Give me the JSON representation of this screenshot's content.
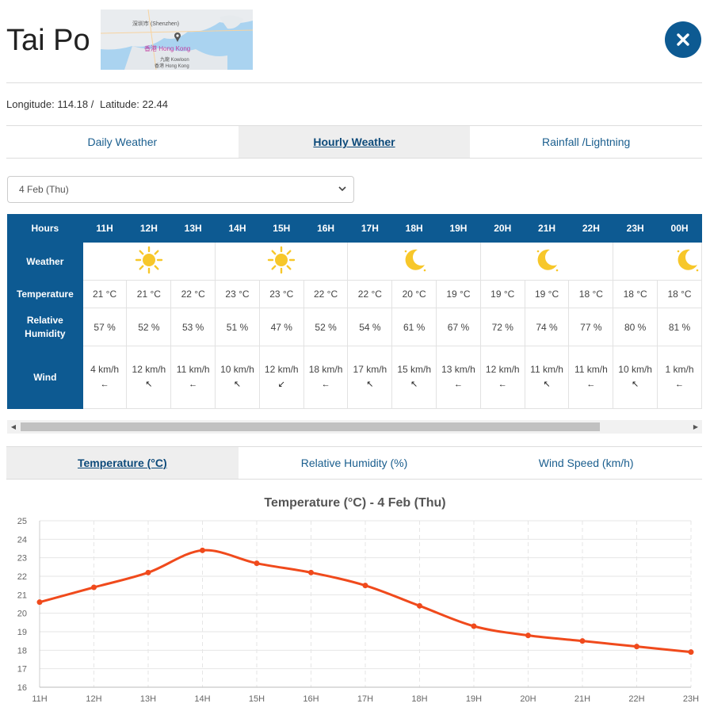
{
  "location": {
    "name": "Tai Po"
  },
  "map": {
    "label1": "深圳市 (Shenzhen)",
    "label2": "香港 Hong Kong",
    "label3": "九龍 Kowloon",
    "label4": "香港 Hong Kong"
  },
  "coords": {
    "longitude_label": "Longitude: 114.18 /",
    "latitude_label": "Latitude: 22.44"
  },
  "main_tabs": [
    {
      "label": "Daily Weather",
      "active": false
    },
    {
      "label": "Hourly Weather",
      "active": true
    },
    {
      "label": "Rainfall /Lightning",
      "active": false
    }
  ],
  "date_select": {
    "value": "4 Feb (Thu)"
  },
  "hourly": {
    "row_labels": {
      "hours": "Hours",
      "weather": "Weather",
      "temperature": "Temperature",
      "humidity": "Relative Humidity",
      "wind": "Wind"
    },
    "hours": [
      "11H",
      "12H",
      "13H",
      "14H",
      "15H",
      "16H",
      "17H",
      "18H",
      "19H",
      "20H",
      "21H",
      "22H",
      "23H",
      "00H"
    ],
    "weather_groups": [
      {
        "icon": "sun-icon",
        "span": 3
      },
      {
        "icon": "sun-icon",
        "span": 3
      },
      {
        "icon": "moon-icon",
        "span": 3
      },
      {
        "icon": "moon-icon",
        "span": 3
      },
      {
        "icon": "moon-icon",
        "span": 2
      }
    ],
    "temperature": [
      "21 °C",
      "21 °C",
      "22 °C",
      "23 °C",
      "23 °C",
      "22 °C",
      "22 °C",
      "20 °C",
      "19 °C",
      "19 °C",
      "19 °C",
      "18 °C",
      "18 °C",
      "18 °C"
    ],
    "humidity": [
      "57 %",
      "52 %",
      "53 %",
      "51 %",
      "47 %",
      "52 %",
      "54 %",
      "61 %",
      "67 %",
      "72 %",
      "74 %",
      "77 %",
      "80 %",
      "81 %"
    ],
    "wind": [
      {
        "speed": "4 km/h",
        "dir": "←"
      },
      {
        "speed": "12 km/h",
        "dir": "↖"
      },
      {
        "speed": "11 km/h",
        "dir": "←"
      },
      {
        "speed": "10 km/h",
        "dir": "↖"
      },
      {
        "speed": "12 km/h",
        "dir": "↙"
      },
      {
        "speed": "18 km/h",
        "dir": "←"
      },
      {
        "speed": "17 km/h",
        "dir": "↖"
      },
      {
        "speed": "15 km/h",
        "dir": "↖"
      },
      {
        "speed": "13 km/h",
        "dir": "←"
      },
      {
        "speed": "12 km/h",
        "dir": "←"
      },
      {
        "speed": "11 km/h",
        "dir": "↖"
      },
      {
        "speed": "11 km/h",
        "dir": "←"
      },
      {
        "speed": "10 km/h",
        "dir": "↖"
      },
      {
        "speed": "1 km/h",
        "dir": "←"
      }
    ]
  },
  "chart_tabs": [
    {
      "label": "Temperature (°C)",
      "active": true
    },
    {
      "label": "Relative Humidity (%)",
      "active": false
    },
    {
      "label": "Wind Speed (km/h)",
      "active": false
    }
  ],
  "colors": {
    "accent": "#0d5a92",
    "line": "#f04a1c",
    "sun": "#f7c72a"
  },
  "chart_data": {
    "type": "line",
    "title": "Temperature (°C) - 4 Feb (Thu)",
    "x": [
      "11H",
      "12H",
      "13H",
      "14H",
      "15H",
      "16H",
      "17H",
      "18H",
      "19H",
      "20H",
      "21H",
      "22H",
      "23H"
    ],
    "series": [
      {
        "values": [
          20.6,
          21.4,
          22.2,
          23.4,
          22.7,
          22.2,
          21.5,
          20.4,
          19.3,
          18.8,
          18.5,
          18.2,
          17.9
        ]
      }
    ],
    "ylim": [
      16,
      25
    ],
    "yticks": [
      16,
      17,
      18,
      19,
      20,
      21,
      22,
      23,
      24,
      25
    ],
    "grid": true,
    "xlabel": "",
    "ylabel": ""
  }
}
